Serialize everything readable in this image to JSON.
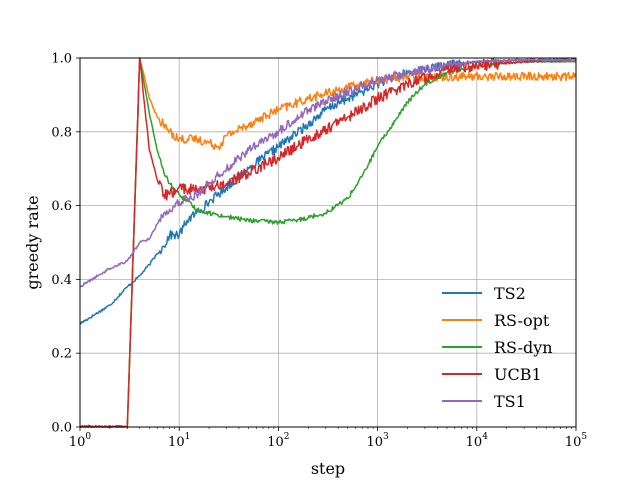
{
  "chart_data": {
    "type": "line",
    "xlabel": "step",
    "ylabel": "greedy rate",
    "xscale": "log",
    "xlim": [
      1,
      100000
    ],
    "ylim": [
      0.0,
      1.0
    ],
    "grid": true,
    "legend_position": "bottom-right",
    "x_ticks": [
      {
        "value": 1,
        "base": "10",
        "exp": "0"
      },
      {
        "value": 10,
        "base": "10",
        "exp": "1"
      },
      {
        "value": 100,
        "base": "10",
        "exp": "2"
      },
      {
        "value": 1000,
        "base": "10",
        "exp": "3"
      },
      {
        "value": 10000,
        "base": "10",
        "exp": "4"
      },
      {
        "value": 100000,
        "base": "10",
        "exp": "5"
      }
    ],
    "y_ticks": [
      {
        "value": 0.0,
        "label": "0.0"
      },
      {
        "value": 0.2,
        "label": "0.2"
      },
      {
        "value": 0.4,
        "label": "0.4"
      },
      {
        "value": 0.6,
        "label": "0.6"
      },
      {
        "value": 0.8,
        "label": "0.8"
      },
      {
        "value": 1.0,
        "label": "1.0"
      }
    ],
    "series": [
      {
        "name": "TS2",
        "color": "#1f77b4",
        "noise": 0.012,
        "points": [
          [
            1,
            0.28
          ],
          [
            2,
            0.33
          ],
          [
            3,
            0.38
          ],
          [
            4,
            0.41
          ],
          [
            5,
            0.44
          ],
          [
            6,
            0.47
          ],
          [
            7,
            0.49
          ],
          [
            8,
            0.52
          ],
          [
            10,
            0.52
          ],
          [
            12,
            0.56
          ],
          [
            15,
            0.58
          ],
          [
            20,
            0.61
          ],
          [
            30,
            0.65
          ],
          [
            50,
            0.7
          ],
          [
            100,
            0.76
          ],
          [
            200,
            0.82
          ],
          [
            300,
            0.86
          ],
          [
            500,
            0.89
          ],
          [
            1000,
            0.93
          ],
          [
            2000,
            0.96
          ],
          [
            5000,
            0.98
          ],
          [
            10000,
            0.99
          ],
          [
            30000,
            0.995
          ],
          [
            100000,
            0.995
          ]
        ]
      },
      {
        "name": "RS-opt",
        "color": "#ff7f0e",
        "noise": 0.012,
        "points": [
          [
            1,
            0.0
          ],
          [
            3,
            0.0
          ],
          [
            4,
            1.0
          ],
          [
            5,
            0.89
          ],
          [
            6,
            0.84
          ],
          [
            8,
            0.8
          ],
          [
            10,
            0.78
          ],
          [
            15,
            0.78
          ],
          [
            20,
            0.77
          ],
          [
            25,
            0.76
          ],
          [
            30,
            0.79
          ],
          [
            50,
            0.82
          ],
          [
            100,
            0.86
          ],
          [
            200,
            0.89
          ],
          [
            500,
            0.92
          ],
          [
            1000,
            0.94
          ],
          [
            2000,
            0.95
          ],
          [
            3000,
            0.95
          ],
          [
            100000,
            0.95
          ]
        ]
      },
      {
        "name": "RS-dyn",
        "color": "#2ca02c",
        "noise": 0.006,
        "points": [
          [
            1,
            0.0
          ],
          [
            3,
            0.0
          ],
          [
            4,
            1.0
          ],
          [
            5,
            0.85
          ],
          [
            6,
            0.75
          ],
          [
            7,
            0.69
          ],
          [
            8,
            0.66
          ],
          [
            10,
            0.63
          ],
          [
            15,
            0.59
          ],
          [
            20,
            0.58
          ],
          [
            30,
            0.57
          ],
          [
            50,
            0.56
          ],
          [
            100,
            0.555
          ],
          [
            150,
            0.56
          ],
          [
            300,
            0.58
          ],
          [
            500,
            0.62
          ],
          [
            700,
            0.68
          ],
          [
            1000,
            0.76
          ],
          [
            1500,
            0.83
          ],
          [
            2000,
            0.88
          ],
          [
            3000,
            0.93
          ],
          [
            5000,
            0.96
          ],
          [
            10000,
            0.98
          ],
          [
            30000,
            0.99
          ],
          [
            100000,
            0.99
          ]
        ]
      },
      {
        "name": "UCB1",
        "color": "#d62728",
        "noise": 0.015,
        "points": [
          [
            1,
            0.0
          ],
          [
            3,
            0.0
          ],
          [
            4,
            1.0
          ],
          [
            5,
            0.75
          ],
          [
            6,
            0.67
          ],
          [
            7,
            0.63
          ],
          [
            8,
            0.63
          ],
          [
            10,
            0.65
          ],
          [
            15,
            0.64
          ],
          [
            20,
            0.65
          ],
          [
            30,
            0.66
          ],
          [
            50,
            0.69
          ],
          [
            100,
            0.73
          ],
          [
            200,
            0.78
          ],
          [
            500,
            0.84
          ],
          [
            1000,
            0.89
          ],
          [
            2000,
            0.93
          ],
          [
            5000,
            0.97
          ],
          [
            10000,
            0.98
          ],
          [
            30000,
            0.99
          ],
          [
            100000,
            0.995
          ]
        ]
      },
      {
        "name": "TS1",
        "color": "#9467bd",
        "noise": 0.012,
        "points": [
          [
            1,
            0.38
          ],
          [
            2,
            0.43
          ],
          [
            3,
            0.45
          ],
          [
            4,
            0.5
          ],
          [
            5,
            0.51
          ],
          [
            6,
            0.55
          ],
          [
            7,
            0.58
          ],
          [
            8,
            0.59
          ],
          [
            10,
            0.61
          ],
          [
            12,
            0.62
          ],
          [
            15,
            0.63
          ],
          [
            20,
            0.66
          ],
          [
            30,
            0.7
          ],
          [
            50,
            0.75
          ],
          [
            100,
            0.8
          ],
          [
            200,
            0.86
          ],
          [
            500,
            0.91
          ],
          [
            1000,
            0.94
          ],
          [
            2000,
            0.96
          ],
          [
            5000,
            0.98
          ],
          [
            10000,
            0.99
          ],
          [
            30000,
            0.995
          ],
          [
            100000,
            0.995
          ]
        ]
      }
    ]
  }
}
